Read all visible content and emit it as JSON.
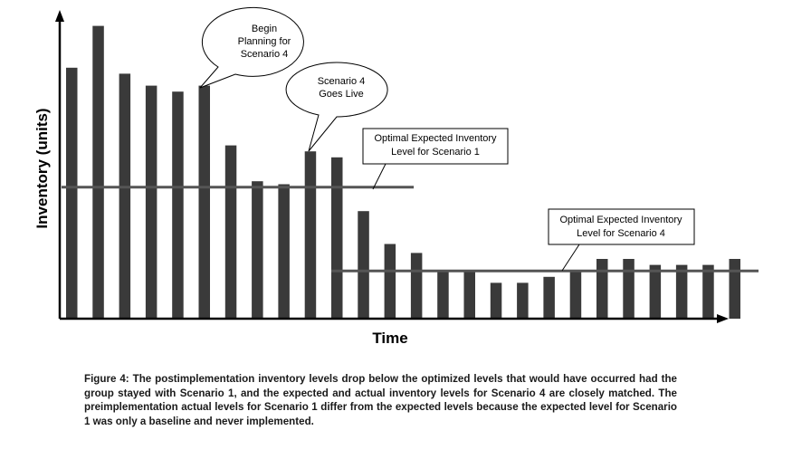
{
  "chart_data": {
    "type": "bar",
    "title": "",
    "xlabel": "Time",
    "ylabel": "Inventory (units)",
    "ylim": [
      0,
      100
    ],
    "values": [
      84,
      98,
      82,
      78,
      76,
      78,
      58,
      46,
      45,
      56,
      54,
      36,
      25,
      22,
      16,
      16,
      12,
      12,
      14,
      16,
      20,
      20,
      18,
      18,
      18,
      20
    ],
    "reference_lines": [
      {
        "name": "Optimal Expected Inventory Level for Scenario 1",
        "value": 44,
        "from_bar": 0,
        "to_bar": 12
      },
      {
        "name": "Optimal Expected Inventory Level for Scenario 4",
        "value": 16,
        "from_bar": 10,
        "to_bar": 25
      }
    ],
    "annotations": [
      {
        "id": "begin-planning",
        "lines": [
          "Begin",
          "Planning for",
          "Scenario 4"
        ],
        "points_to_bar": 5
      },
      {
        "id": "goes-live",
        "lines": [
          "Scenario 4",
          "Goes Live"
        ],
        "points_to_bar": 9
      },
      {
        "id": "opt-scenario-1",
        "lines": [
          "Optimal Expected Inventory",
          "Level for Scenario 1"
        ],
        "points_to_line": 0
      },
      {
        "id": "opt-scenario-4",
        "lines": [
          "Optimal Expected Inventory",
          "Level for Scenario 4"
        ],
        "points_to_line": 1
      }
    ],
    "colors": {
      "bar": "#3a3a3a",
      "reference_line": "#555555",
      "axis": "#000000"
    }
  },
  "caption": "Figure 4: The postimplementation inventory levels drop below the optimized levels that would have occurred had the group stayed with Scenario 1, and the expected and actual inventory levels for Scenario 4 are closely matched. The preimplementation actual levels for Scenario 1 differ from the expected levels because the expected level for Scenario 1 was only a baseline and never implemented."
}
